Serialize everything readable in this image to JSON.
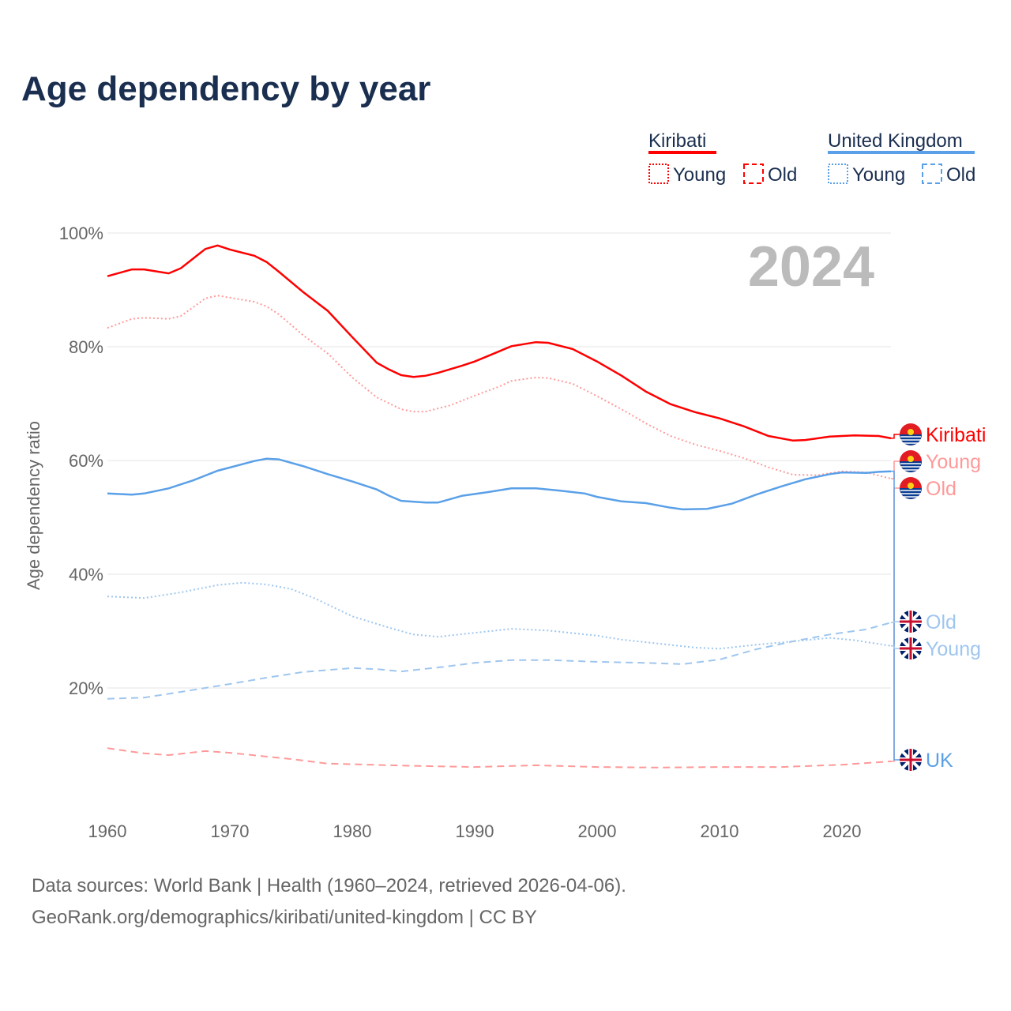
{
  "chart_data": {
    "type": "line",
    "title": "Age dependency by year",
    "ylabel": "Age dependency ratio",
    "xlabel": "",
    "xlim": [
      1960,
      2024
    ],
    "ylim": [
      0,
      100
    ],
    "xticks": [
      1960,
      1970,
      1980,
      1990,
      2000,
      2010,
      2020
    ],
    "yticks": [
      20,
      40,
      60,
      80,
      100
    ],
    "ytick_labels": [
      "20%",
      "40%",
      "60%",
      "80%",
      "100%"
    ],
    "year_label": "2024",
    "grid": true,
    "legend": {
      "placement": "top-right",
      "groups": [
        {
          "name": "Kiribati",
          "color": "#ff0000",
          "items": [
            "Young",
            "Old"
          ]
        },
        {
          "name": "United Kingdom",
          "color": "#5aa0e8",
          "items": [
            "Young",
            "Old"
          ]
        }
      ]
    },
    "series": [
      {
        "name": "Kiribati",
        "label": "Kiribati",
        "flag": "kiribati",
        "style": "solid",
        "color": "#ff0000",
        "x": [
          1960,
          1962,
          1963,
          1965,
          1966,
          1968,
          1969,
          1970,
          1972,
          1973,
          1974,
          1976,
          1978,
          1980,
          1982,
          1983,
          1984,
          1985,
          1986,
          1987,
          1989,
          1990,
          1992,
          1993,
          1995,
          1996,
          1998,
          2000,
          2002,
          2004,
          2006,
          2008,
          2010,
          2012,
          2014,
          2016,
          2017,
          2019,
          2021,
          2023,
          2024
        ],
        "y": [
          92.4,
          93.6,
          93.6,
          92.9,
          93.8,
          97.2,
          97.8,
          97.1,
          96,
          94.9,
          93.2,
          89.6,
          86.3,
          81.7,
          77.2,
          76,
          75,
          74.7,
          74.9,
          75.4,
          76.7,
          77.4,
          79.2,
          80.1,
          80.8,
          80.7,
          79.6,
          77.4,
          74.9,
          72.1,
          69.9,
          68.5,
          67.4,
          66,
          64.3,
          63.5,
          63.6,
          64.2,
          64.4,
          64.3,
          63.9
        ]
      },
      {
        "name": "Kiribati Young",
        "label": "Young",
        "flag": "kiribati",
        "style": "dotted",
        "color": "#ff9999",
        "x": [
          1960,
          1962,
          1963,
          1965,
          1966,
          1968,
          1969,
          1972,
          1973,
          1974,
          1976,
          1978,
          1980,
          1982,
          1984,
          1985,
          1986,
          1988,
          1990,
          1992,
          1993,
          1995,
          1996,
          1998,
          2000,
          2002,
          2004,
          2006,
          2008,
          2010,
          2012,
          2014,
          2016,
          2018,
          2020,
          2022,
          2024
        ],
        "y": [
          83.3,
          84.9,
          85.1,
          84.9,
          85.4,
          88.5,
          89,
          87.9,
          87.1,
          85.7,
          82,
          78.8,
          74.6,
          71.1,
          69,
          68.6,
          68.6,
          69.7,
          71.4,
          73,
          74,
          74.6,
          74.5,
          73.5,
          71.3,
          69,
          66.5,
          64.3,
          62.8,
          61.7,
          60.4,
          58.8,
          57.5,
          57.4,
          58.1,
          57.9,
          56.8
        ]
      },
      {
        "name": "Kiribati Old",
        "label": "Old",
        "flag": "kiribati",
        "style": "dashed",
        "color": "#ff9999",
        "x": [
          1960,
          1963,
          1965,
          1968,
          1970,
          1975,
          1978,
          1985,
          1990,
          1995,
          2000,
          2005,
          2010,
          2015,
          2020,
          2024
        ],
        "y": [
          9.4,
          8.5,
          8.2,
          8.9,
          8.6,
          7.5,
          6.7,
          6.3,
          6.1,
          6.4,
          6.1,
          6,
          6.1,
          6.1,
          6.5,
          7.1
        ]
      },
      {
        "name": "United Kingdom",
        "label": "UK",
        "flag": "uk",
        "style": "solid",
        "color": "#5aa0e8",
        "x": [
          1960,
          1962,
          1963,
          1965,
          1967,
          1969,
          1972,
          1973,
          1974,
          1976,
          1978,
          1980,
          1982,
          1983,
          1984,
          1986,
          1987,
          1989,
          1991,
          1993,
          1995,
          1997,
          1999,
          2000,
          2002,
          2004,
          2006,
          2007,
          2009,
          2011,
          2013,
          2015,
          2017,
          2019,
          2020,
          2022,
          2023,
          2024
        ],
        "y": [
          54.2,
          54,
          54.2,
          55.1,
          56.5,
          58.2,
          59.9,
          60.3,
          60.2,
          59,
          57.6,
          56.3,
          54.9,
          53.8,
          52.9,
          52.6,
          52.6,
          53.8,
          54.4,
          55.1,
          55.1,
          54.7,
          54.2,
          53.6,
          52.8,
          52.5,
          51.7,
          51.4,
          51.5,
          52.4,
          54,
          55.4,
          56.7,
          57.6,
          57.9,
          57.8,
          58,
          58.1
        ]
      },
      {
        "name": "United Kingdom Old",
        "label": "Old",
        "flag": "uk",
        "style": "dashed",
        "color": "#9fc6ef",
        "x": [
          1960,
          1963,
          1966,
          1970,
          1973,
          1976,
          1980,
          1982,
          1984,
          1987,
          1990,
          1993,
          1996,
          2000,
          2004,
          2007,
          2010,
          2013,
          2016,
          2019,
          2022,
          2024
        ],
        "y": [
          18.1,
          18.3,
          19.3,
          20.7,
          21.8,
          22.8,
          23.5,
          23.3,
          22.9,
          23.6,
          24.4,
          24.9,
          24.9,
          24.6,
          24.4,
          24.2,
          25,
          26.8,
          28.2,
          29.4,
          30.3,
          31.5
        ]
      },
      {
        "name": "United Kingdom Young",
        "label": "Young",
        "flag": "uk",
        "style": "dotted",
        "color": "#9fc6ef",
        "x": [
          1960,
          1963,
          1966,
          1969,
          1971,
          1973,
          1975,
          1977,
          1980,
          1983,
          1985,
          1987,
          1990,
          1993,
          1996,
          2000,
          2002,
          2005,
          2008,
          2010,
          2013,
          2016,
          2019,
          2021,
          2024
        ],
        "y": [
          36.1,
          35.8,
          36.8,
          38.1,
          38.5,
          38.2,
          37.4,
          35.7,
          32.6,
          30.6,
          29.4,
          29,
          29.7,
          30.4,
          30.1,
          29.2,
          28.5,
          27.8,
          27.1,
          26.9,
          27.6,
          28.2,
          28.8,
          28.4,
          27.4
        ]
      }
    ]
  },
  "footer": {
    "line1": "Data sources: World Bank | Health (1960–2024, retrieved 2026-04-06).",
    "line2": "GeoRank.org/demographics/kiribati/united-kingdom | CC BY"
  }
}
